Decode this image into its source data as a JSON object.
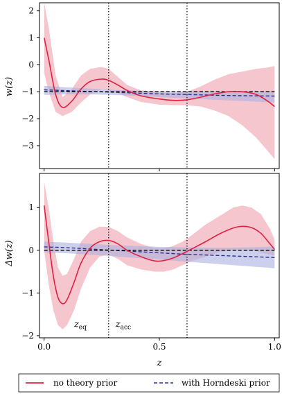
{
  "chart_data": [
    {
      "type": "line",
      "title": "",
      "xlabel": "",
      "ylabel": "w(z)",
      "xlim": [
        -0.02,
        1.02
      ],
      "ylim": [
        -3.85,
        2.3
      ],
      "xticks": [
        0.0,
        0.5,
        1.0
      ],
      "yticks": [
        2,
        1,
        0,
        -1,
        -2,
        -3
      ],
      "ytick_labels": [
        "2",
        "1",
        "0",
        "−1",
        "−2",
        "−3"
      ],
      "vlines": [
        0.28,
        0.62
      ],
      "series": [
        {
          "name": "no theory prior",
          "color": "#e02040",
          "style": "solid",
          "x": [
            0.0,
            0.02,
            0.05,
            0.08,
            0.12,
            0.16,
            0.2,
            0.25,
            0.28,
            0.32,
            0.36,
            0.42,
            0.5,
            0.56,
            0.62,
            0.68,
            0.74,
            0.8,
            0.86,
            0.92,
            0.97,
            1.0
          ],
          "y": [
            1.0,
            0.2,
            -1.1,
            -1.58,
            -1.35,
            -0.9,
            -0.62,
            -0.53,
            -0.58,
            -0.75,
            -0.95,
            -1.15,
            -1.27,
            -1.32,
            -1.3,
            -1.2,
            -1.08,
            -1.0,
            -1.0,
            -1.1,
            -1.35,
            -1.55
          ],
          "band_lower": [
            -0.3,
            -1.0,
            -1.75,
            -1.9,
            -1.75,
            -1.4,
            -1.1,
            -0.9,
            -0.95,
            -1.05,
            -1.2,
            -1.38,
            -1.48,
            -1.5,
            -1.5,
            -1.55,
            -1.7,
            -1.9,
            -2.25,
            -2.7,
            -3.2,
            -3.5
          ],
          "band_upper": [
            2.3,
            1.4,
            -0.4,
            -1.2,
            -0.9,
            -0.4,
            -0.15,
            -0.08,
            -0.15,
            -0.45,
            -0.75,
            -0.95,
            -1.02,
            -1.05,
            -1.0,
            -0.8,
            -0.55,
            -0.35,
            -0.25,
            -0.15,
            -0.1,
            -0.05
          ]
        },
        {
          "name": "with Horndeski prior",
          "color": "#2a2d8f",
          "style": "dashed",
          "x": [
            0.0,
            0.1,
            0.2,
            0.3,
            0.4,
            0.5,
            0.6,
            0.7,
            0.8,
            0.9,
            1.0
          ],
          "y": [
            -0.93,
            -0.96,
            -0.99,
            -1.02,
            -1.05,
            -1.08,
            -1.1,
            -1.12,
            -1.14,
            -1.15,
            -1.16
          ],
          "band_lower": [
            -1.12,
            -1.1,
            -1.1,
            -1.12,
            -1.15,
            -1.2,
            -1.24,
            -1.28,
            -1.32,
            -1.36,
            -1.4
          ],
          "band_upper": [
            -0.78,
            -0.84,
            -0.88,
            -0.93,
            -0.96,
            -0.98,
            -0.99,
            -0.99,
            -0.99,
            -0.98,
            -0.98
          ]
        },
        {
          "name": "",
          "color": "#000000",
          "style": "dashed",
          "x": [
            0.0,
            1.0
          ],
          "y": [
            -1.0,
            -1.0
          ]
        }
      ]
    },
    {
      "type": "line",
      "title": "",
      "xlabel": "z",
      "ylabel": "Δw(z)",
      "xlim": [
        -0.02,
        1.02
      ],
      "ylim": [
        -2.05,
        1.8
      ],
      "xticks": [
        0.0,
        0.5,
        1.0
      ],
      "xtick_labels": [
        "0.0",
        "0.5",
        "1.0"
      ],
      "yticks": [
        1,
        0,
        -1,
        -2
      ],
      "ytick_labels": [
        "1",
        "0",
        "−1",
        "−2"
      ],
      "vlines": [
        0.28,
        0.62
      ],
      "annotations": [
        {
          "text_base": "z",
          "text_sub": "eq",
          "x": 0.13,
          "y": -1.8
        },
        {
          "text_base": "z",
          "text_sub": "acc",
          "x": 0.31,
          "y": -1.8
        }
      ],
      "series": [
        {
          "name": "no theory prior",
          "color": "#e02040",
          "style": "solid",
          "x": [
            0.0,
            0.02,
            0.04,
            0.06,
            0.08,
            0.1,
            0.13,
            0.16,
            0.2,
            0.24,
            0.28,
            0.32,
            0.36,
            0.42,
            0.48,
            0.52,
            0.56,
            0.6,
            0.64,
            0.7,
            0.76,
            0.82,
            0.86,
            0.9,
            0.94,
            0.98,
            1.0
          ],
          "y": [
            1.05,
            0.2,
            -0.6,
            -1.1,
            -1.25,
            -1.15,
            -0.75,
            -0.3,
            0.05,
            0.2,
            0.23,
            0.15,
            0.0,
            -0.15,
            -0.25,
            -0.24,
            -0.18,
            -0.08,
            0.03,
            0.2,
            0.38,
            0.52,
            0.56,
            0.53,
            0.4,
            0.15,
            0.02
          ],
          "band_lower": [
            0.0,
            -0.8,
            -1.4,
            -1.75,
            -1.85,
            -1.75,
            -1.4,
            -0.9,
            -0.4,
            -0.15,
            -0.1,
            -0.2,
            -0.35,
            -0.45,
            -0.5,
            -0.5,
            -0.45,
            -0.35,
            -0.25,
            -0.15,
            -0.05,
            0.0,
            0.02,
            0.0,
            -0.05,
            -0.1,
            -0.12
          ],
          "band_upper": [
            1.6,
            1.0,
            0.2,
            -0.4,
            -0.6,
            -0.55,
            -0.2,
            0.2,
            0.45,
            0.55,
            0.55,
            0.45,
            0.3,
            0.15,
            0.05,
            0.05,
            0.1,
            0.2,
            0.35,
            0.6,
            0.8,
            1.0,
            1.05,
            1.0,
            0.85,
            0.5,
            0.25
          ]
        },
        {
          "name": "with Horndeski prior",
          "color": "#2a2d8f",
          "style": "dashed",
          "x": [
            0.0,
            0.1,
            0.2,
            0.3,
            0.4,
            0.5,
            0.6,
            0.7,
            0.8,
            0.9,
            1.0
          ],
          "y": [
            0.08,
            0.06,
            0.03,
            0.0,
            -0.03,
            -0.06,
            -0.09,
            -0.11,
            -0.13,
            -0.15,
            -0.17
          ],
          "band_lower": [
            -0.05,
            -0.07,
            -0.1,
            -0.14,
            -0.18,
            -0.22,
            -0.26,
            -0.3,
            -0.34,
            -0.38,
            -0.42
          ],
          "band_upper": [
            0.2,
            0.18,
            0.15,
            0.12,
            0.1,
            0.08,
            0.07,
            0.06,
            0.06,
            0.07,
            0.09
          ]
        },
        {
          "name": "",
          "color": "#000000",
          "style": "dashed",
          "x": [
            0.0,
            1.0
          ],
          "y": [
            0.0,
            0.0
          ]
        }
      ]
    }
  ],
  "legend": {
    "placement": "bottom",
    "items": [
      {
        "label": "no theory prior",
        "color": "#e02040",
        "style": "solid"
      },
      {
        "label": "with Horndeski prior",
        "color": "#2a2d8f",
        "style": "dashed"
      }
    ]
  },
  "colors": {
    "red_line": "#e02040",
    "red_band": "#f1b3be",
    "blue_line": "#2a2d8f",
    "blue_band": "#aab0e0",
    "vline": "#000000"
  }
}
